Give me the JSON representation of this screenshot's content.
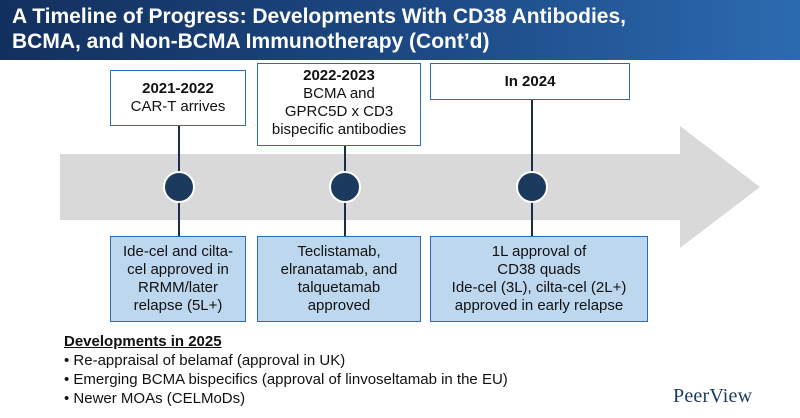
{
  "slide": {
    "title_line1": "A Timeline of Progress: Developments With CD38 Antibodies,",
    "title_line2": "BCMA, and Non-BCMA Immunotherapy (Cont’d)"
  },
  "colors": {
    "header": "#1d4a86",
    "arrow": "#d9d9d9",
    "milestone_dot": "#1b3a5e",
    "box_border": "#2b6cb6",
    "bottom_box_fill": "#bdd7ee"
  },
  "timeline": [
    {
      "period": "2021-2022",
      "top_lines": [
        "CAR-T arrives"
      ],
      "bottom_lines": [
        "Ide-cel and cilta-",
        "cel approved in",
        "RRMM/later",
        "relapse (5L+)"
      ]
    },
    {
      "period": "2022-2023",
      "top_lines": [
        "BCMA and",
        "GPRC5D x CD3",
        "bispecific antibodies"
      ],
      "bottom_lines": [
        "Teclistamab,",
        "elranatamab, and",
        "talquetamab",
        "approved"
      ]
    },
    {
      "period": "In 2024",
      "top_lines": [],
      "bottom_lines": [
        "1L approval of",
        "CD38 quads",
        "Ide-cel (3L), cilta-cel (2L+)",
        "approved in early relapse"
      ]
    }
  ],
  "developments": {
    "heading": "Developments in 2025",
    "items": [
      "Re-appraisal of belamaf (approval in UK)",
      "Emerging BCMA bispecifics (approval of linvoseltamab in the EU)",
      "Newer MOAs (CELMoDs)"
    ]
  },
  "logo": {
    "text": "PeerView",
    "icon": "peerview-logo"
  }
}
